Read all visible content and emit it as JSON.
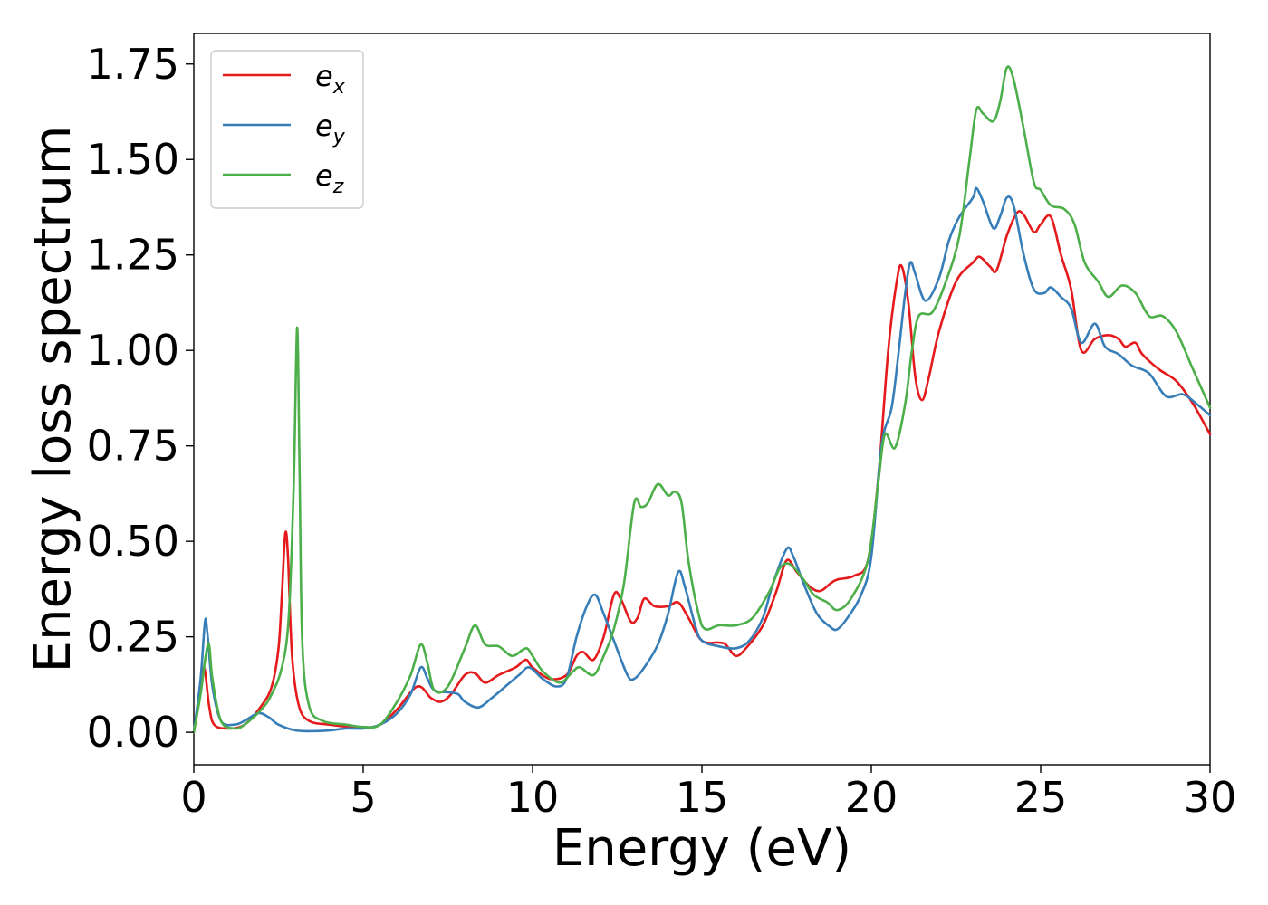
{
  "chart_data": {
    "type": "line",
    "xlabel": "Energy (eV)",
    "ylabel": "Energy loss spectrum",
    "xlim": [
      0,
      30
    ],
    "ylim": [
      -0.085,
      1.83
    ],
    "xticks": [
      0,
      5,
      10,
      15,
      20,
      25,
      30
    ],
    "xtick_labels": [
      "0",
      "5",
      "10",
      "15",
      "20",
      "25",
      "30"
    ],
    "yticks": [
      0.0,
      0.25,
      0.5,
      0.75,
      1.0,
      1.25,
      1.5,
      1.75
    ],
    "ytick_labels": [
      "0.00",
      "0.25",
      "0.50",
      "0.75",
      "1.00",
      "1.25",
      "1.50",
      "1.75"
    ],
    "grid": false,
    "legend_position": "top-left",
    "series": [
      {
        "name": "e_x",
        "legend_base": "e",
        "legend_sub": "x",
        "color": "#e41a1c",
        "points": [
          [
            0.0,
            0.0
          ],
          [
            0.15,
            0.09
          ],
          [
            0.3,
            0.17
          ],
          [
            0.45,
            0.07
          ],
          [
            0.6,
            0.02
          ],
          [
            1.0,
            0.01
          ],
          [
            1.5,
            0.02
          ],
          [
            2.0,
            0.07
          ],
          [
            2.3,
            0.12
          ],
          [
            2.5,
            0.22
          ],
          [
            2.6,
            0.36
          ],
          [
            2.7,
            0.52
          ],
          [
            2.78,
            0.46
          ],
          [
            2.9,
            0.2
          ],
          [
            3.1,
            0.07
          ],
          [
            3.4,
            0.03
          ],
          [
            4.0,
            0.02
          ],
          [
            5.0,
            0.012
          ],
          [
            5.5,
            0.02
          ],
          [
            6.0,
            0.06
          ],
          [
            6.6,
            0.12
          ],
          [
            7.0,
            0.09
          ],
          [
            7.3,
            0.08
          ],
          [
            7.6,
            0.1
          ],
          [
            8.0,
            0.15
          ],
          [
            8.3,
            0.155
          ],
          [
            8.6,
            0.13
          ],
          [
            9.0,
            0.15
          ],
          [
            9.5,
            0.17
          ],
          [
            9.8,
            0.19
          ],
          [
            10.0,
            0.17
          ],
          [
            10.5,
            0.14
          ],
          [
            11.0,
            0.15
          ],
          [
            11.3,
            0.2
          ],
          [
            11.5,
            0.21
          ],
          [
            11.8,
            0.19
          ],
          [
            12.1,
            0.25
          ],
          [
            12.4,
            0.36
          ],
          [
            12.6,
            0.35
          ],
          [
            12.9,
            0.29
          ],
          [
            13.1,
            0.3
          ],
          [
            13.3,
            0.35
          ],
          [
            13.6,
            0.33
          ],
          [
            14.0,
            0.33
          ],
          [
            14.3,
            0.34
          ],
          [
            14.6,
            0.3
          ],
          [
            15.0,
            0.24
          ],
          [
            15.5,
            0.235
          ],
          [
            15.7,
            0.23
          ],
          [
            16.0,
            0.2
          ],
          [
            16.3,
            0.22
          ],
          [
            16.8,
            0.28
          ],
          [
            17.2,
            0.37
          ],
          [
            17.5,
            0.45
          ],
          [
            17.8,
            0.42
          ],
          [
            18.2,
            0.38
          ],
          [
            18.5,
            0.37
          ],
          [
            18.8,
            0.39
          ],
          [
            19.0,
            0.4
          ],
          [
            19.5,
            0.41
          ],
          [
            19.9,
            0.45
          ],
          [
            20.2,
            0.66
          ],
          [
            20.5,
            1.0
          ],
          [
            20.75,
            1.18
          ],
          [
            20.9,
            1.22
          ],
          [
            21.1,
            1.12
          ],
          [
            21.3,
            0.93
          ],
          [
            21.5,
            0.87
          ],
          [
            21.7,
            0.93
          ],
          [
            22.0,
            1.05
          ],
          [
            22.5,
            1.18
          ],
          [
            23.0,
            1.23
          ],
          [
            23.2,
            1.245
          ],
          [
            23.5,
            1.22
          ],
          [
            23.7,
            1.21
          ],
          [
            24.0,
            1.3
          ],
          [
            24.3,
            1.36
          ],
          [
            24.5,
            1.355
          ],
          [
            24.8,
            1.31
          ],
          [
            25.0,
            1.33
          ],
          [
            25.3,
            1.35
          ],
          [
            25.6,
            1.25
          ],
          [
            25.9,
            1.16
          ],
          [
            26.2,
            1.0
          ],
          [
            26.6,
            1.03
          ],
          [
            27.0,
            1.04
          ],
          [
            27.3,
            1.03
          ],
          [
            27.5,
            1.01
          ],
          [
            27.8,
            1.02
          ],
          [
            28.0,
            0.99
          ],
          [
            28.5,
            0.95
          ],
          [
            29.0,
            0.92
          ],
          [
            29.5,
            0.86
          ],
          [
            30.0,
            0.78
          ]
        ]
      },
      {
        "name": "e_y",
        "legend_base": "e",
        "legend_sub": "y",
        "color": "#377eb8",
        "points": [
          [
            0.0,
            0.0
          ],
          [
            0.2,
            0.14
          ],
          [
            0.33,
            0.29
          ],
          [
            0.4,
            0.26
          ],
          [
            0.55,
            0.12
          ],
          [
            0.8,
            0.03
          ],
          [
            1.2,
            0.02
          ],
          [
            1.5,
            0.03
          ],
          [
            1.9,
            0.05
          ],
          [
            2.2,
            0.04
          ],
          [
            2.5,
            0.02
          ],
          [
            3.0,
            0.005
          ],
          [
            3.5,
            0.003
          ],
          [
            4.0,
            0.005
          ],
          [
            4.5,
            0.01
          ],
          [
            5.0,
            0.01
          ],
          [
            5.5,
            0.02
          ],
          [
            6.0,
            0.05
          ],
          [
            6.4,
            0.1
          ],
          [
            6.7,
            0.17
          ],
          [
            6.9,
            0.14
          ],
          [
            7.1,
            0.11
          ],
          [
            7.5,
            0.105
          ],
          [
            7.8,
            0.1
          ],
          [
            8.0,
            0.08
          ],
          [
            8.4,
            0.065
          ],
          [
            8.8,
            0.09
          ],
          [
            9.2,
            0.12
          ],
          [
            9.6,
            0.15
          ],
          [
            9.9,
            0.17
          ],
          [
            10.3,
            0.14
          ],
          [
            10.7,
            0.12
          ],
          [
            11.0,
            0.14
          ],
          [
            11.3,
            0.25
          ],
          [
            11.6,
            0.33
          ],
          [
            11.85,
            0.36
          ],
          [
            12.1,
            0.31
          ],
          [
            12.4,
            0.24
          ],
          [
            12.8,
            0.15
          ],
          [
            13.0,
            0.14
          ],
          [
            13.3,
            0.17
          ],
          [
            13.7,
            0.23
          ],
          [
            14.0,
            0.31
          ],
          [
            14.3,
            0.42
          ],
          [
            14.5,
            0.38
          ],
          [
            14.8,
            0.28
          ],
          [
            15.0,
            0.24
          ],
          [
            15.5,
            0.225
          ],
          [
            16.0,
            0.22
          ],
          [
            16.4,
            0.24
          ],
          [
            16.8,
            0.3
          ],
          [
            17.1,
            0.39
          ],
          [
            17.5,
            0.48
          ],
          [
            17.7,
            0.46
          ],
          [
            18.0,
            0.39
          ],
          [
            18.4,
            0.31
          ],
          [
            18.8,
            0.275
          ],
          [
            19.0,
            0.27
          ],
          [
            19.3,
            0.3
          ],
          [
            19.7,
            0.36
          ],
          [
            20.0,
            0.46
          ],
          [
            20.3,
            0.75
          ],
          [
            20.6,
            0.85
          ],
          [
            20.8,
            0.99
          ],
          [
            21.0,
            1.15
          ],
          [
            21.15,
            1.23
          ],
          [
            21.3,
            1.2
          ],
          [
            21.6,
            1.13
          ],
          [
            22.0,
            1.19
          ],
          [
            22.3,
            1.29
          ],
          [
            22.6,
            1.35
          ],
          [
            23.0,
            1.4
          ],
          [
            23.1,
            1.425
          ],
          [
            23.3,
            1.39
          ],
          [
            23.6,
            1.32
          ],
          [
            23.8,
            1.35
          ],
          [
            24.0,
            1.4
          ],
          [
            24.2,
            1.38
          ],
          [
            24.5,
            1.25
          ],
          [
            24.8,
            1.16
          ],
          [
            25.1,
            1.15
          ],
          [
            25.3,
            1.165
          ],
          [
            25.6,
            1.14
          ],
          [
            25.9,
            1.11
          ],
          [
            26.2,
            1.02
          ],
          [
            26.6,
            1.07
          ],
          [
            26.9,
            1.01
          ],
          [
            27.3,
            0.99
          ],
          [
            27.7,
            0.96
          ],
          [
            28.2,
            0.94
          ],
          [
            28.7,
            0.88
          ],
          [
            29.2,
            0.885
          ],
          [
            29.6,
            0.86
          ],
          [
            30.0,
            0.83
          ]
        ]
      },
      {
        "name": "e_z",
        "legend_base": "e",
        "legend_sub": "z",
        "color": "#4daf4a",
        "points": [
          [
            0.0,
            0.0
          ],
          [
            0.2,
            0.1
          ],
          [
            0.35,
            0.2
          ],
          [
            0.45,
            0.23
          ],
          [
            0.55,
            0.14
          ],
          [
            0.8,
            0.03
          ],
          [
            1.2,
            0.01
          ],
          [
            1.5,
            0.02
          ],
          [
            2.0,
            0.06
          ],
          [
            2.3,
            0.1
          ],
          [
            2.6,
            0.17
          ],
          [
            2.8,
            0.3
          ],
          [
            2.95,
            0.65
          ],
          [
            3.05,
            1.06
          ],
          [
            3.12,
            0.7
          ],
          [
            3.2,
            0.24
          ],
          [
            3.4,
            0.07
          ],
          [
            3.8,
            0.03
          ],
          [
            4.5,
            0.02
          ],
          [
            5.0,
            0.014
          ],
          [
            5.5,
            0.02
          ],
          [
            6.0,
            0.08
          ],
          [
            6.4,
            0.15
          ],
          [
            6.7,
            0.23
          ],
          [
            6.9,
            0.18
          ],
          [
            7.1,
            0.11
          ],
          [
            7.5,
            0.12
          ],
          [
            8.0,
            0.22
          ],
          [
            8.3,
            0.28
          ],
          [
            8.6,
            0.23
          ],
          [
            9.0,
            0.225
          ],
          [
            9.4,
            0.2
          ],
          [
            9.8,
            0.22
          ],
          [
            10.0,
            0.2
          ],
          [
            10.3,
            0.16
          ],
          [
            10.8,
            0.13
          ],
          [
            11.2,
            0.16
          ],
          [
            11.4,
            0.17
          ],
          [
            11.8,
            0.15
          ],
          [
            12.1,
            0.2
          ],
          [
            12.4,
            0.27
          ],
          [
            12.7,
            0.39
          ],
          [
            13.0,
            0.6
          ],
          [
            13.2,
            0.59
          ],
          [
            13.4,
            0.6
          ],
          [
            13.7,
            0.65
          ],
          [
            14.0,
            0.62
          ],
          [
            14.2,
            0.63
          ],
          [
            14.4,
            0.6
          ],
          [
            14.6,
            0.45
          ],
          [
            14.9,
            0.31
          ],
          [
            15.1,
            0.27
          ],
          [
            15.5,
            0.28
          ],
          [
            16.0,
            0.28
          ],
          [
            16.5,
            0.3
          ],
          [
            17.0,
            0.37
          ],
          [
            17.3,
            0.43
          ],
          [
            17.6,
            0.44
          ],
          [
            18.0,
            0.4
          ],
          [
            18.3,
            0.36
          ],
          [
            18.7,
            0.34
          ],
          [
            19.0,
            0.32
          ],
          [
            19.4,
            0.35
          ],
          [
            19.9,
            0.45
          ],
          [
            20.2,
            0.65
          ],
          [
            20.4,
            0.78
          ],
          [
            20.7,
            0.745
          ],
          [
            21.0,
            0.86
          ],
          [
            21.2,
            1.0
          ],
          [
            21.4,
            1.09
          ],
          [
            21.8,
            1.1
          ],
          [
            22.2,
            1.18
          ],
          [
            22.6,
            1.3
          ],
          [
            22.9,
            1.5
          ],
          [
            23.1,
            1.63
          ],
          [
            23.3,
            1.62
          ],
          [
            23.6,
            1.6
          ],
          [
            23.8,
            1.65
          ],
          [
            24.0,
            1.74
          ],
          [
            24.2,
            1.71
          ],
          [
            24.5,
            1.58
          ],
          [
            24.8,
            1.44
          ],
          [
            25.0,
            1.42
          ],
          [
            25.3,
            1.38
          ],
          [
            25.7,
            1.37
          ],
          [
            26.0,
            1.33
          ],
          [
            26.3,
            1.23
          ],
          [
            26.7,
            1.18
          ],
          [
            27.0,
            1.14
          ],
          [
            27.4,
            1.17
          ],
          [
            27.8,
            1.15
          ],
          [
            28.2,
            1.09
          ],
          [
            28.6,
            1.09
          ],
          [
            29.0,
            1.05
          ],
          [
            29.5,
            0.95
          ],
          [
            30.0,
            0.85
          ]
        ]
      }
    ]
  }
}
